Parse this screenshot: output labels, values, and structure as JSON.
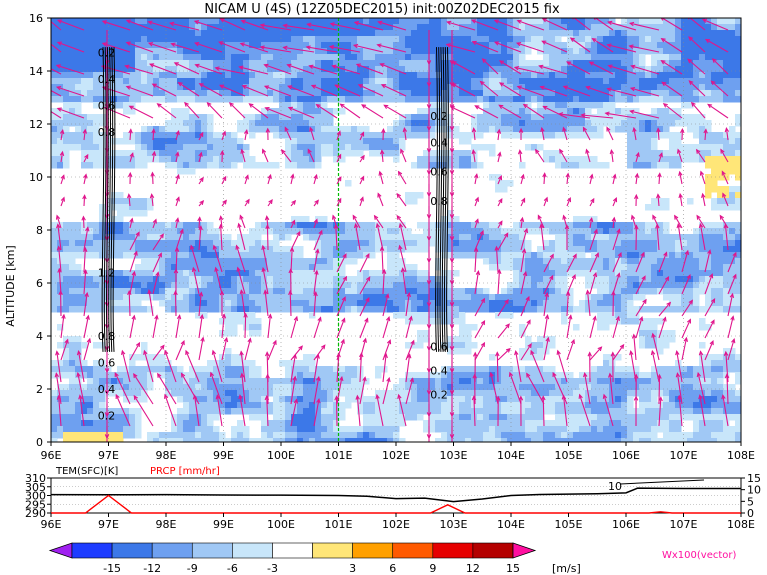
{
  "title": "NICAM U (4S) (12Z05DEC2015) init:00Z02DEC2015 fix",
  "chart_data": [
    {
      "type": "heatmap",
      "title": "NICAM U (4S) (12Z05DEC2015) init:00Z02DEC2015 fix",
      "ylabel": "ALTITUDE [km]",
      "xlabel": "",
      "xlim": [
        96,
        108
      ],
      "ylim": [
        0,
        16
      ],
      "x_ticks": [
        "96E",
        "97E",
        "98E",
        "99E",
        "100E",
        "101E",
        "102E",
        "103E",
        "104E",
        "105E",
        "106E",
        "107E",
        "108E"
      ],
      "y_ticks": [
        "0",
        "2",
        "4",
        "6",
        "8",
        "10",
        "12",
        "14",
        "16"
      ],
      "grid": true,
      "highlight_line_x": 101,
      "contour_clusters": [
        {
          "x": 97.0,
          "labels": [
            "0.2",
            "0.4",
            "0.6",
            "0.8",
            "1.2",
            "0.8",
            "0.6",
            "0.4",
            "0.2"
          ],
          "y_levels": [
            14.7,
            13.7,
            12.7,
            11.7,
            6.4,
            4.0,
            3.0,
            2.0,
            1.0
          ]
        },
        {
          "x": 102.8,
          "labels": [
            "0.2",
            "0.4",
            "0.6",
            "0.8",
            "0.6",
            "0.4",
            "0.2"
          ],
          "y_levels": [
            12.3,
            11.3,
            10.2,
            9.1,
            3.6,
            2.7,
            1.8
          ]
        }
      ],
      "vector_note": "wind vectors (magenta arrows)"
    },
    {
      "type": "line",
      "labels": {
        "tem": "TEM(SFC)[K]",
        "prcp": "PRCP [mm/hr]"
      },
      "left_ticks": [
        "310",
        "305",
        "300",
        "295",
        "290"
      ],
      "right_ticks": [
        "15",
        "10",
        "5",
        "0"
      ],
      "left_range": [
        290,
        310
      ],
      "right_range": [
        0,
        15
      ],
      "x_ticks": [
        "96E",
        "97E",
        "98E",
        "99E",
        "100E",
        "101E",
        "102E",
        "103E",
        "104E",
        "105E",
        "106E",
        "107E",
        "108E"
      ],
      "annotation": "10",
      "series": [
        {
          "name": "TEM(SFC)[K]",
          "color": "#000000",
          "x": [
            96,
            97,
            98,
            99,
            100,
            101,
            101.5,
            102,
            102.5,
            103,
            103.5,
            104,
            104.5,
            105,
            105.5,
            106,
            106.2,
            107,
            108
          ],
          "values": [
            300.5,
            300.4,
            300.5,
            300.3,
            300.2,
            300.0,
            299.6,
            298.2,
            298.5,
            296.5,
            298.0,
            300.0,
            300.6,
            300.8,
            301.0,
            301.5,
            304.2,
            304.0,
            304.0
          ]
        },
        {
          "name": "PRCP [mm/hr]",
          "color": "#ff0000",
          "x": [
            96,
            96.6,
            97.0,
            97.4,
            97.8,
            102.6,
            102.9,
            103.2,
            106.4,
            106.6,
            106.8,
            108
          ],
          "values": [
            0,
            0,
            7.5,
            0,
            0,
            0,
            3.5,
            0,
            0,
            0.5,
            0,
            0
          ]
        }
      ]
    },
    {
      "type": "bar",
      "colorbar_ticks": [
        "-15",
        "-12",
        "-9",
        "-6",
        "-3",
        "3",
        "6",
        "9",
        "12",
        "15"
      ],
      "unit": "[m/s]",
      "colors": [
        "#a020f0",
        "#1e3cff",
        "#3c78e8",
        "#6ea0f0",
        "#a0c8f5",
        "#c8e6fa",
        "#ffffff",
        "#ffe678",
        "#ffa000",
        "#ff5a00",
        "#e60000",
        "#b40000",
        "#ff0fa0"
      ],
      "vector_label": "Wx100(vector)"
    }
  ]
}
